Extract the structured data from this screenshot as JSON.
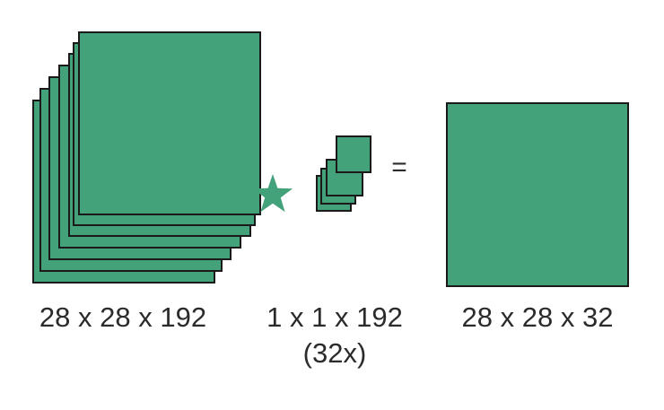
{
  "colors": {
    "tile_fill": "#44a27b",
    "tile_stroke": "#1a1a1a",
    "text": "#2b2b2b"
  },
  "operators": {
    "convolve_icon": "star-icon",
    "equals": "="
  },
  "blocks": [
    {
      "name": "input-volume",
      "label": "28 x 28 x 192",
      "stacked_layers": 7
    },
    {
      "name": "filter-stack",
      "label": "1 x 1 x 192",
      "sublabel": "(32x)",
      "stacked_layers": 4
    },
    {
      "name": "output-volume",
      "label": "28 x 28 x 32",
      "stacked_layers": 1
    }
  ]
}
